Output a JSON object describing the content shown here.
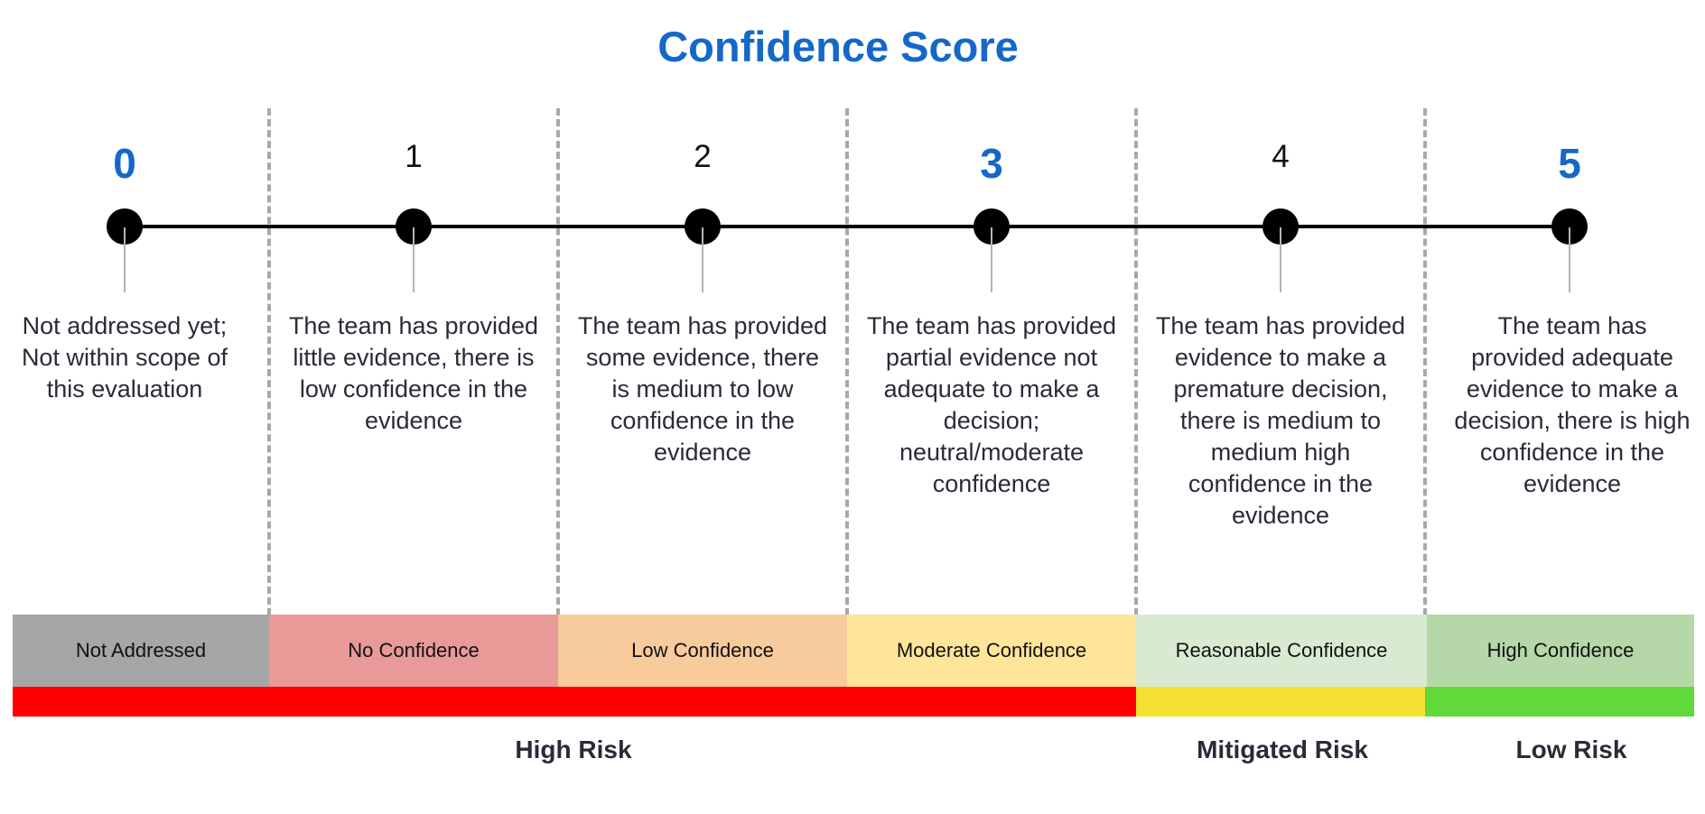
{
  "title": "Confidence Score",
  "scores": [
    {
      "value": "0",
      "description": "Not addressed yet; Not within scope of this evaluation"
    },
    {
      "value": "1",
      "description": "The team has provided little evidence, there is low confidence in the evidence"
    },
    {
      "value": "2",
      "description": "The team has provided some evidence, there is medium to low confidence in the evidence"
    },
    {
      "value": "3",
      "description": "The team has provided partial evidence not adequate to make a decision; neutral/moderate confidence"
    },
    {
      "value": "4",
      "description": "The team has provided evidence to make a premature decision, there is medium to medium high confidence in the evidence"
    },
    {
      "value": "5",
      "description": "The team has provided adequate evidence to make a decision, there is high confidence in the evidence"
    }
  ],
  "bands": [
    {
      "label": "Not Addressed",
      "color": "#a6a6a6"
    },
    {
      "label": "No Confidence",
      "color": "#ea9999"
    },
    {
      "label": "Low Confidence",
      "color": "#f8cb9c"
    },
    {
      "label": "Moderate Confidence",
      "color": "#ffe599"
    },
    {
      "label": "Reasonable Confidence",
      "color": "#d9ead3"
    },
    {
      "label": "High Confidence",
      "color": "#b6d7a8"
    }
  ],
  "risks": [
    {
      "label": "High Risk",
      "color": "#ff0000"
    },
    {
      "label": "Mitigated Risk",
      "color": "#f5e032"
    },
    {
      "label": "Low Risk",
      "color": "#62d93a"
    }
  ],
  "accent_color": "#1468c8"
}
